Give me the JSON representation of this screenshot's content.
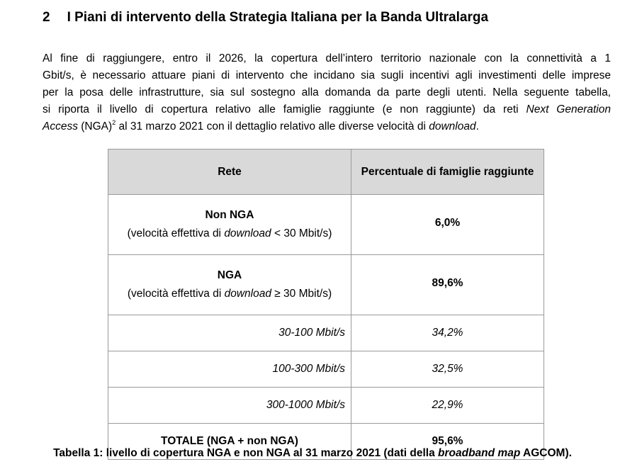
{
  "section": {
    "number": "2",
    "title": "I Piani di intervento della Strategia Italiana per la Banda Ultralarga"
  },
  "intro": {
    "line1": "Al fine di raggiungere, entro il 2026, la copertura dell’intero territorio nazionale con la connettività a 1",
    "line2": "Gbit/s, è necessario attuare piani di intervento che incidano sia sugli incentivi agli investimenti delle imprese",
    "line3": "per la posa delle infrastrutture, sia sul sostegno alla domanda da parte degli utenti. Nella seguente tabella,",
    "line4_a": "si riporta il livello di copertura relativo alle famiglie raggiunte (e non raggiunte) da reti ",
    "line4_it": "Next Generation",
    "line5_it": "Access",
    "line5_a": " (NGA)",
    "footnote_ref": "2",
    "line5_b": " al 31 marzo 2021 con il dettaglio relativo alle diverse velocità di ",
    "line5_it2": "download",
    "line5_end": "."
  },
  "table": {
    "headers": {
      "rete": "Rete",
      "percentuale": "Percentuale di famiglie raggiunte"
    },
    "rows": {
      "non_nga": {
        "title": "Non NGA",
        "sub_a": "(velocità effettiva di ",
        "sub_it": "download",
        "sub_b": " < 30 Mbit/s)",
        "value": "6,0%"
      },
      "nga": {
        "title": "NGA",
        "sub_a": "(velocità effettiva di ",
        "sub_it": "download",
        "sub_b": " ≥ 30 Mbit/s)",
        "value": "89,6%"
      },
      "r30_100": {
        "label": "30-100 Mbit/s",
        "value": "34,2%"
      },
      "r100_300": {
        "label": "100-300 Mbit/s",
        "value": "32,5%"
      },
      "r300_1000": {
        "label": "300-1000 Mbit/s",
        "value": "22,9%"
      },
      "totale": {
        "label": "TOTALE (NGA + non NGA)",
        "value": "95,6%"
      }
    }
  },
  "caption": {
    "a": "Tabella 1: livello di copertura NGA e non NGA al 31 marzo 2021 (dati della ",
    "it": "broadband map",
    "b": " AGCOM)."
  }
}
